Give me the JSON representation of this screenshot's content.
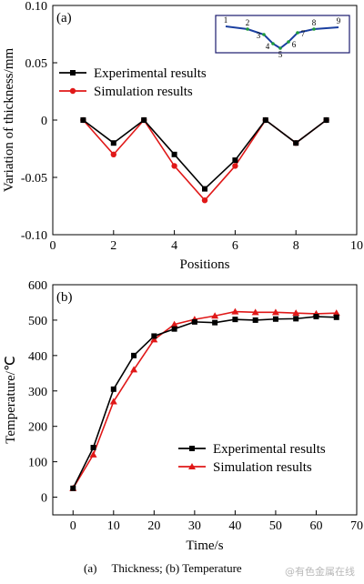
{
  "chart_data": [
    {
      "type": "line",
      "panel_label": "(a)",
      "xlabel": "Positions",
      "ylabel": "Variation of thickness/mm",
      "xlim": [
        0,
        10
      ],
      "ylim": [
        -0.1,
        0.1
      ],
      "xticks": [
        "0",
        "2",
        "4",
        "6",
        "8",
        "10"
      ],
      "yticks": [
        "-0.10",
        "-0.05",
        "0",
        "0.05",
        "0.10"
      ],
      "grid": false,
      "legend_position": "upper-left",
      "series": [
        {
          "name": "Experimental results",
          "color": "#000000",
          "marker": "square",
          "x": [
            1,
            2,
            3,
            4,
            5,
            6,
            7,
            8,
            9
          ],
          "y": [
            0,
            -0.02,
            0,
            -0.03,
            -0.06,
            -0.035,
            0,
            -0.02,
            0
          ]
        },
        {
          "name": "Simulation results",
          "color": "#e01818",
          "marker": "circle",
          "x": [
            1,
            2,
            3,
            4,
            5,
            6,
            7,
            8,
            9
          ],
          "y": [
            0,
            -0.03,
            0,
            -0.04,
            -0.07,
            -0.04,
            0,
            -0.02,
            0
          ]
        }
      ],
      "inset": {
        "point_labels": [
          "1",
          "2",
          "3",
          "4",
          "5",
          "6",
          "7",
          "8",
          "9"
        ]
      }
    },
    {
      "type": "line",
      "panel_label": "(b)",
      "xlabel": "Time/s",
      "ylabel": "Temperature/℃",
      "xlim": [
        -5,
        70
      ],
      "ylim": [
        -50,
        600
      ],
      "xticks": [
        "0",
        "10",
        "20",
        "30",
        "40",
        "50",
        "60",
        "70"
      ],
      "yticks": [
        "0",
        "100",
        "200",
        "300",
        "400",
        "500",
        "600"
      ],
      "grid": false,
      "legend_position": "lower-right",
      "series": [
        {
          "name": "Experimental results",
          "color": "#000000",
          "marker": "square",
          "x": [
            0,
            5,
            10,
            15,
            20,
            25,
            30,
            35,
            40,
            45,
            50,
            55,
            60,
            65
          ],
          "y": [
            25,
            140,
            305,
            400,
            455,
            475,
            495,
            493,
            502,
            500,
            503,
            504,
            510,
            508
          ]
        },
        {
          "name": "Simulation results",
          "color": "#e01818",
          "marker": "triangle",
          "x": [
            0,
            5,
            10,
            15,
            20,
            25,
            30,
            35,
            40,
            45,
            50,
            55,
            60,
            65
          ],
          "y": [
            25,
            120,
            270,
            360,
            445,
            488,
            502,
            512,
            524,
            522,
            522,
            520,
            518,
            520
          ]
        }
      ]
    }
  ],
  "caption": "(a)     Thickness; (b) Temperature",
  "watermark": "@有色金属在线",
  "colors": {
    "inset_border": "#1a1a6e",
    "inset_line": "#1a3fa0",
    "inset_marker": "#1c9c3c"
  }
}
